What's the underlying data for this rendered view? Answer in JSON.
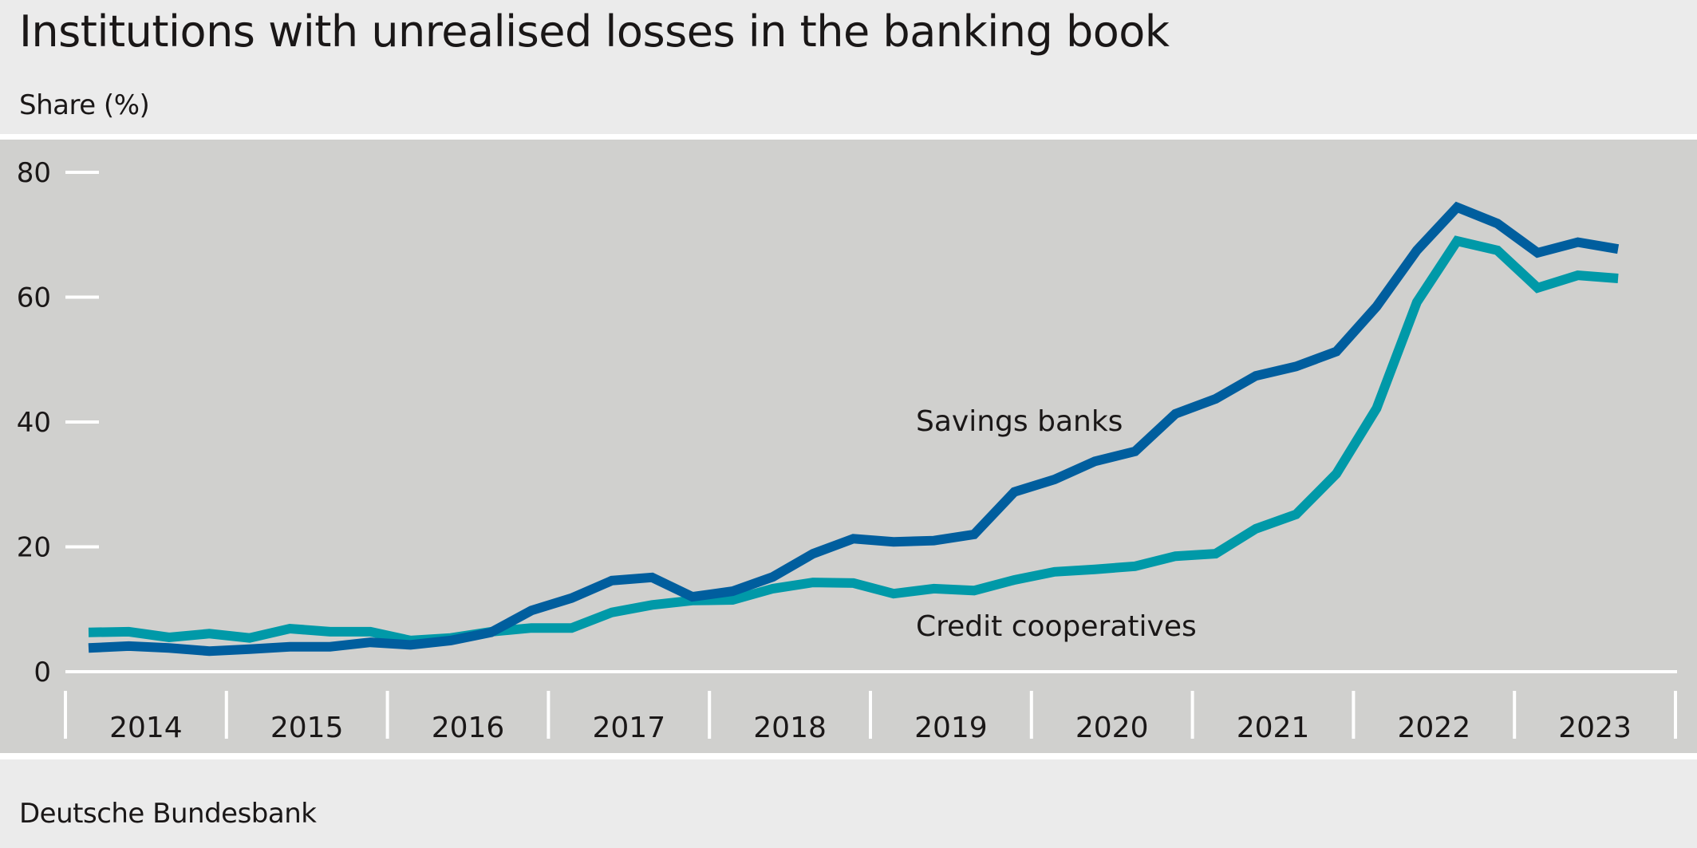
{
  "header": {
    "title": "Institutions with unrealised losses in the banking book",
    "subtitle": "Share (%)"
  },
  "footer": {
    "source": "Deutsche Bundesbank"
  },
  "colors": {
    "savings_banks": "#005e9e",
    "credit_cooperatives": "#0099a8",
    "plot_background": "#d0d0ce",
    "page_background": "#ebebeb",
    "axis": "#ffffff"
  },
  "chart_data": {
    "type": "line",
    "title": "Institutions with unrealised losses in the banking book",
    "subtitle": "Share (%)",
    "xlabel": "",
    "ylabel": "Share (%)",
    "ylim": [
      0,
      80
    ],
    "yticks": [
      0,
      20,
      40,
      60,
      80
    ],
    "xticks": [
      "2014",
      "2015",
      "2016",
      "2017",
      "2018",
      "2019",
      "2020",
      "2021",
      "2022",
      "2023"
    ],
    "grid": false,
    "legend": "inline labels",
    "annotations": [
      {
        "text": "Savings banks",
        "series": "Savings banks"
      },
      {
        "text": "Credit cooperatives",
        "series": "Credit cooperatives"
      }
    ],
    "x": [
      "2014Q1",
      "2014Q2",
      "2014Q3",
      "2014Q4",
      "2015Q1",
      "2015Q2",
      "2015Q3",
      "2015Q4",
      "2016Q1",
      "2016Q2",
      "2016Q3",
      "2016Q4",
      "2017Q1",
      "2017Q2",
      "2017Q3",
      "2017Q4",
      "2018Q1",
      "2018Q2",
      "2018Q3",
      "2018Q4",
      "2019Q1",
      "2019Q2",
      "2019Q3",
      "2019Q4",
      "2020Q1",
      "2020Q2",
      "2020Q3",
      "2020Q4",
      "2021Q1",
      "2021Q2",
      "2021Q3",
      "2021Q4",
      "2022Q1",
      "2022Q2",
      "2022Q3",
      "2022Q4",
      "2023Q1",
      "2023Q2",
      "2023Q3"
    ],
    "series": [
      {
        "name": "Savings banks",
        "color": "#005e9e",
        "values": [
          3.8,
          4.1,
          3.8,
          3.3,
          3.6,
          4.0,
          4.0,
          4.7,
          4.3,
          5.0,
          6.3,
          9.8,
          11.8,
          14.6,
          15.1,
          12.0,
          12.9,
          15.2,
          18.9,
          21.3,
          20.8,
          21.0,
          22.0,
          28.8,
          30.8,
          33.7,
          35.3,
          41.3,
          43.7,
          47.4,
          48.9,
          51.3,
          58.5,
          67.5,
          74.4,
          71.8,
          67.1,
          68.8,
          67.7
        ]
      },
      {
        "name": "Credit cooperatives",
        "color": "#0099a8",
        "values": [
          6.3,
          6.4,
          5.5,
          6.1,
          5.4,
          6.9,
          6.4,
          6.4,
          5.0,
          5.4,
          6.4,
          7.0,
          7.0,
          9.5,
          10.7,
          11.4,
          11.5,
          13.3,
          14.3,
          14.2,
          12.5,
          13.3,
          13.0,
          14.7,
          16.0,
          16.4,
          16.9,
          18.5,
          18.9,
          22.9,
          25.2,
          31.7,
          42.2,
          59.2,
          69.0,
          67.5,
          61.5,
          63.5,
          63.0
        ]
      }
    ]
  }
}
